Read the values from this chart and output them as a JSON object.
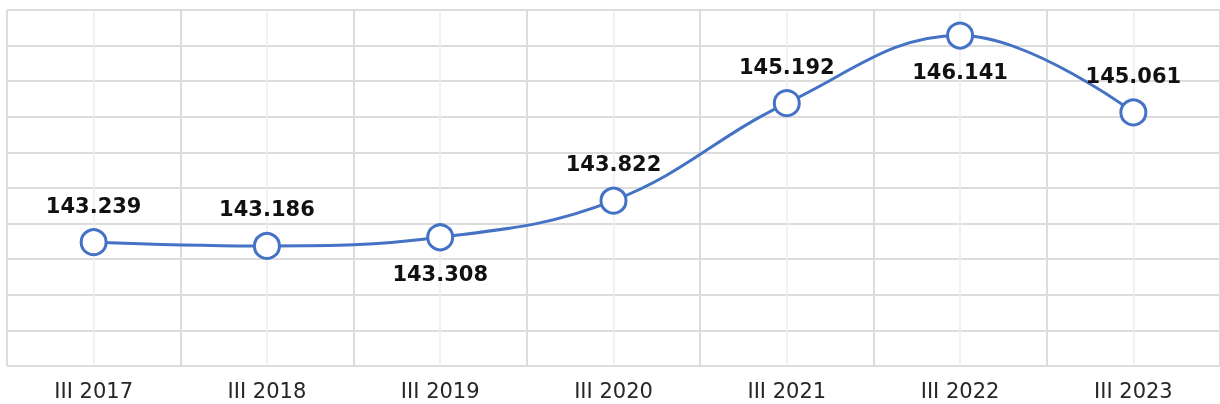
{
  "chart_data": {
    "type": "line",
    "categories": [
      "III 2017",
      "III 2018",
      "III 2019",
      "III 2020",
      "III 2021",
      "III 2022",
      "III 2023"
    ],
    "values": [
      143.239,
      143.186,
      143.308,
      143.822,
      145.192,
      146.141,
      145.061
    ],
    "color": "#4472c4",
    "ylim": [
      141.5,
      146.5
    ],
    "yticks": [
      {
        "value": 141.5,
        "label": null
      },
      {
        "value": 142,
        "label": null
      },
      {
        "value": 142.5,
        "label": null
      },
      {
        "value": 143,
        "label": null
      },
      {
        "value": 143.5,
        "label": null
      },
      {
        "value": 144,
        "label": null
      },
      {
        "value": 144.5,
        "label": null
      },
      {
        "value": 145,
        "label": null
      },
      {
        "value": 145.5,
        "label": null
      },
      {
        "value": 146,
        "label": null
      },
      {
        "value": 146.5,
        "label": null
      }
    ],
    "grid": true,
    "tick_labels": "x",
    "data_labels": true,
    "marker": "circle",
    "line_style": "solid"
  }
}
